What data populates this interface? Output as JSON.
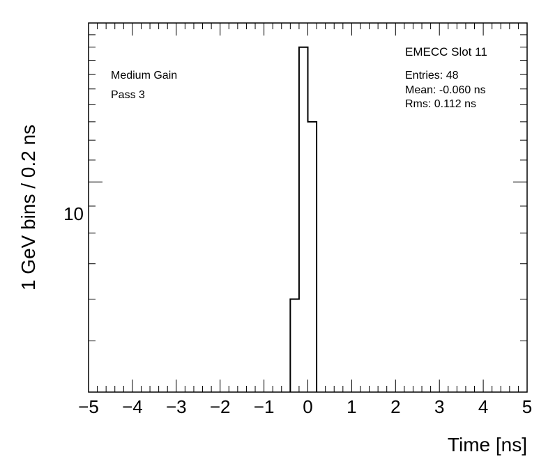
{
  "chart_data": {
    "type": "histogram",
    "xlabel": "Time [ns]",
    "ylabel": "1 GeV bins / 0.2 ns",
    "xlim": [
      -5,
      5
    ],
    "ylim": [
      4,
      20
    ],
    "yscale": "log",
    "grid": false,
    "bin_width": 0.2,
    "bins": [
      {
        "x0": -0.4,
        "x1": -0.2,
        "value": 6
      },
      {
        "x0": -0.2,
        "x1": 0.0,
        "value": 18
      },
      {
        "x0": 0.0,
        "x1": 0.2,
        "value": 13
      }
    ],
    "x_ticks": [
      "−5",
      "−4",
      "−3",
      "−2",
      "−1",
      "0",
      "1",
      "2",
      "3",
      "4",
      "5"
    ],
    "y_tick_label": "10",
    "annotations": {
      "top_left_line1": "Medium Gain",
      "top_left_line2": "Pass 3",
      "title_right": "EMECC Slot 11",
      "entries": "Entries: 48",
      "mean": "Mean: -0.060 ns",
      "rms": "Rms: 0.112 ns"
    }
  }
}
